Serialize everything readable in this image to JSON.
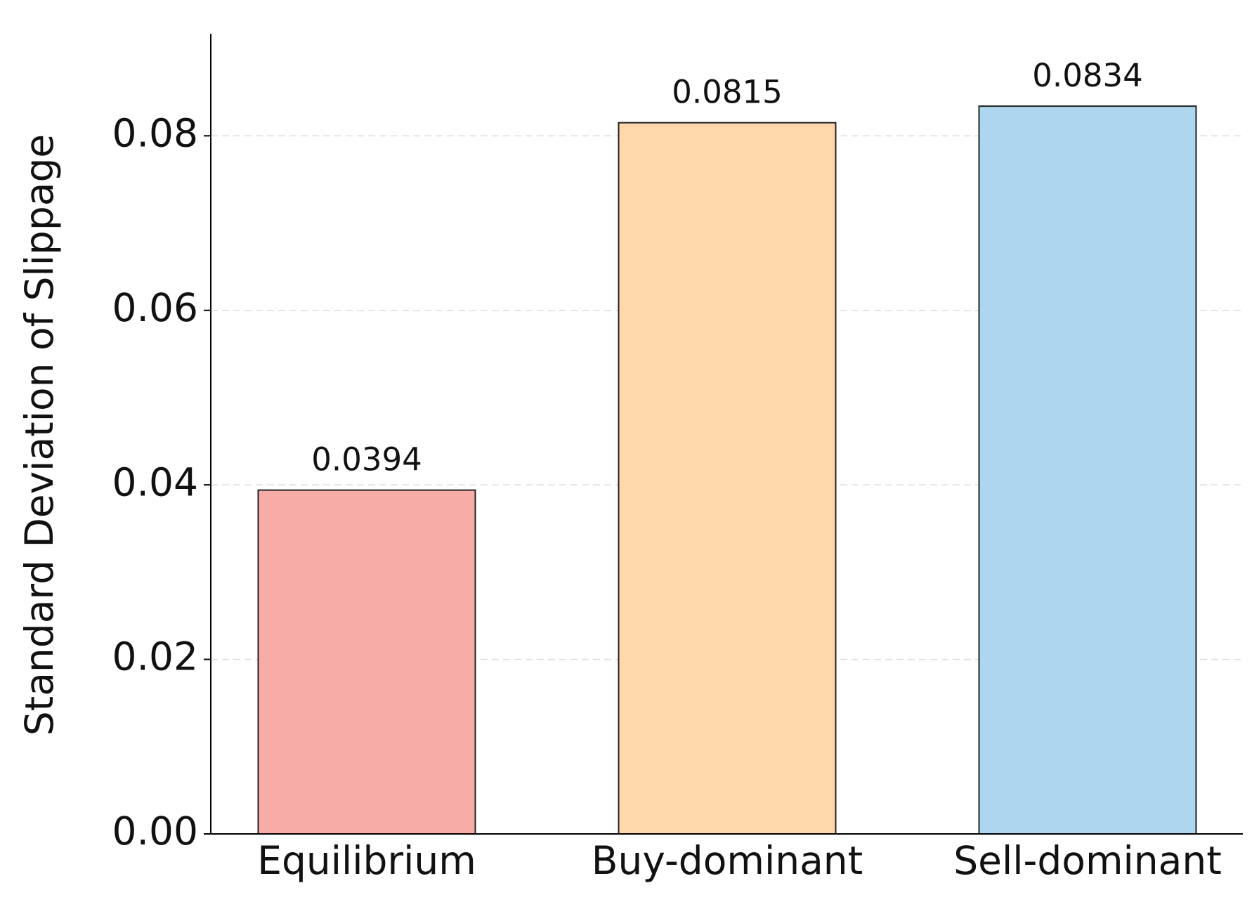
{
  "chart_data": {
    "type": "bar",
    "ylabel": "Standard Deviation of Slippage",
    "categories": [
      "Equilibrium",
      "Buy-dominant",
      "Sell-dominant"
    ],
    "values": [
      0.0394,
      0.0815,
      0.0834
    ],
    "colors": [
      "#f7aca8",
      "#fed7ab",
      "#aed6ee"
    ],
    "ylim": [
      0,
      0.0917
    ],
    "yticks": [
      {
        "value": 0,
        "label": "0.00"
      },
      0.02,
      0.04,
      0.06,
      0.08
    ],
    "grid": true
  }
}
